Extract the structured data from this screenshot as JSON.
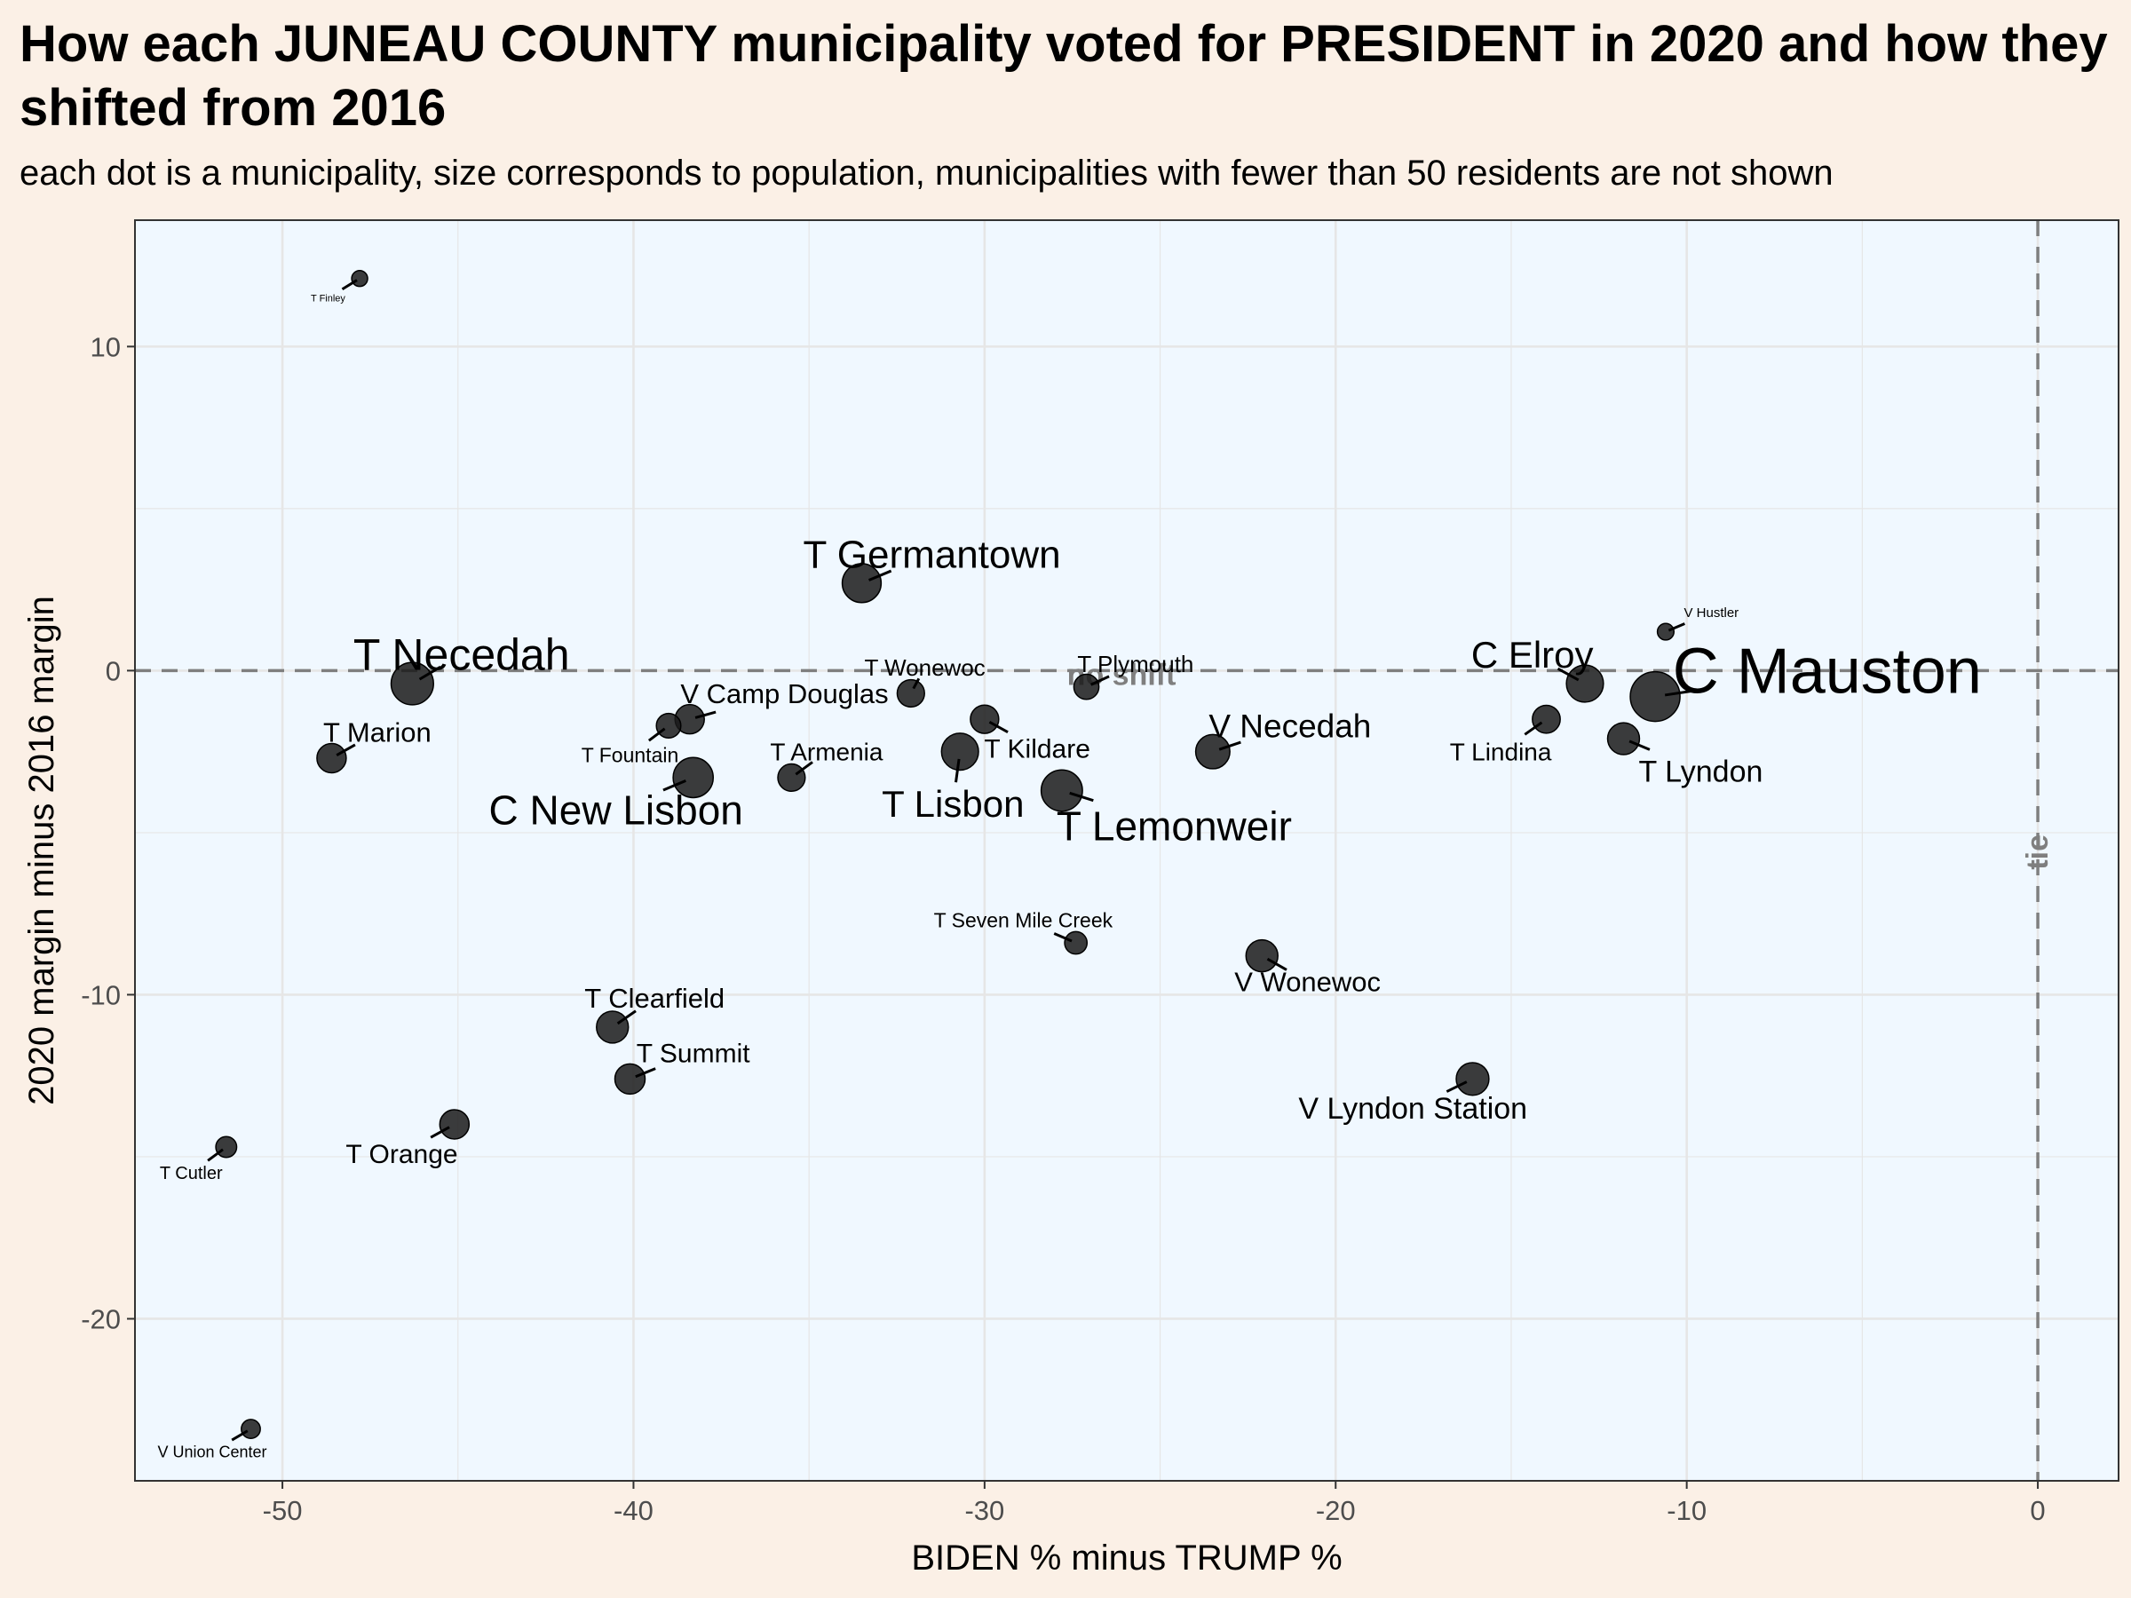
{
  "chart_data": {
    "type": "scatter",
    "title": "How each JUNEAU COUNTY municipality voted for PRESIDENT in 2020 and how they shifted from 2016",
    "subtitle": "each dot is a municipality, size corresponds to population, municipalities with fewer than 50 residents are not shown",
    "xlabel": "BIDEN % minus TRUMP %",
    "ylabel": "2020 margin minus 2016 margin",
    "xlim": [
      -54.2,
      2.3
    ],
    "ylim": [
      -25,
      13.9
    ],
    "x_ticks": [
      -50,
      -40,
      -30,
      -20,
      -10,
      0
    ],
    "y_ticks": [
      -20,
      -10,
      0,
      10
    ],
    "x_tick_labels": [
      "-50",
      "-40",
      "-30",
      "-20",
      "-10",
      "0"
    ],
    "y_tick_labels": [
      "-20",
      "-10",
      "0",
      "10"
    ],
    "grid": true,
    "reference_lines": [
      {
        "axis": "y",
        "value": 0,
        "label": "no shift"
      },
      {
        "axis": "x",
        "value": 0,
        "label": "tie"
      }
    ],
    "colors": {
      "panel": "#f0f8ff",
      "background": "#fbf0e6",
      "point": "#1a1a1a",
      "reference": "#7f7f7f",
      "grid": "#e6e6e6"
    },
    "points": [
      {
        "name": "T Finley",
        "x": -47.8,
        "y": 12.1,
        "pop": 80,
        "lx": -48.7,
        "ly": 11.5,
        "fs": 11
      },
      {
        "name": "V Hustler",
        "x": -10.6,
        "y": 1.2,
        "pop": 100,
        "lx": -9.3,
        "ly": 1.8,
        "fs": 15
      },
      {
        "name": "V Union Center",
        "x": -50.9,
        "y": -23.4,
        "pop": 200,
        "lx": -52.0,
        "ly": -24.1,
        "fs": 18
      },
      {
        "name": "T Cutler",
        "x": -51.6,
        "y": -14.7,
        "pop": 300,
        "lx": -52.6,
        "ly": -15.5,
        "fs": 20
      },
      {
        "name": "T Plymouth",
        "x": -27.1,
        "y": -0.5,
        "pop": 600,
        "lx": -25.7,
        "ly": 0.2,
        "fs": 26
      },
      {
        "name": "T Seven Mile Creek",
        "x": -27.4,
        "y": -8.4,
        "pop": 400,
        "lx": -28.9,
        "ly": -7.7,
        "fs": 23
      },
      {
        "name": "T Fountain",
        "x": -39.0,
        "y": -1.7,
        "pop": 550,
        "lx": -40.1,
        "ly": -2.6,
        "fs": 23
      },
      {
        "name": "T Wonewoc",
        "x": -32.1,
        "y": -0.7,
        "pop": 800,
        "lx": -31.7,
        "ly": 0.1,
        "fs": 26
      },
      {
        "name": "T Armenia",
        "x": -35.5,
        "y": -3.3,
        "pop": 800,
        "lx": -34.5,
        "ly": -2.5,
        "fs": 28
      },
      {
        "name": "T Lindina",
        "x": -14.0,
        "y": -1.5,
        "pop": 850,
        "lx": -15.3,
        "ly": -2.5,
        "fs": 28
      },
      {
        "name": "T Kildare",
        "x": -30.0,
        "y": -1.5,
        "pop": 900,
        "lx": -28.5,
        "ly": -2.4,
        "fs": 30
      },
      {
        "name": "V Camp Douglas",
        "x": -38.4,
        "y": -1.5,
        "pop": 1000,
        "lx": -35.7,
        "ly": -0.7,
        "fs": 31
      },
      {
        "name": "T Marion",
        "x": -48.6,
        "y": -2.7,
        "pop": 1000,
        "lx": -47.3,
        "ly": -1.9,
        "fs": 31
      },
      {
        "name": "T Orange",
        "x": -45.1,
        "y": -14.0,
        "pop": 1000,
        "lx": -46.6,
        "ly": -14.9,
        "fs": 30
      },
      {
        "name": "T Summit",
        "x": -40.1,
        "y": -12.6,
        "pop": 1100,
        "lx": -38.3,
        "ly": -11.8,
        "fs": 30
      },
      {
        "name": "T Lyndon",
        "x": -11.8,
        "y": -2.1,
        "pop": 1300,
        "lx": -9.6,
        "ly": -3.1,
        "fs": 34
      },
      {
        "name": "T Clearfield",
        "x": -40.6,
        "y": -11.0,
        "pop": 1300,
        "lx": -39.4,
        "ly": -10.1,
        "fs": 31
      },
      {
        "name": "V Wonewoc",
        "x": -22.1,
        "y": -8.8,
        "pop": 1300,
        "lx": -20.8,
        "ly": -9.6,
        "fs": 31
      },
      {
        "name": "V Lyndon Station",
        "x": -16.1,
        "y": -12.6,
        "pop": 1400,
        "lx": -17.8,
        "ly": -13.5,
        "fs": 34
      },
      {
        "name": "V Necedah",
        "x": -23.5,
        "y": -2.5,
        "pop": 1600,
        "lx": -21.3,
        "ly": -1.7,
        "fs": 37
      },
      {
        "name": "T Lisbon",
        "x": -30.7,
        "y": -2.5,
        "pop": 2000,
        "lx": -30.9,
        "ly": -4.1,
        "fs": 42
      },
      {
        "name": "C Elroy",
        "x": -12.9,
        "y": -0.4,
        "pop": 2000,
        "lx": -14.4,
        "ly": 0.5,
        "fs": 42
      },
      {
        "name": "T Germantown",
        "x": -33.5,
        "y": 2.7,
        "pop": 2300,
        "lx": -31.5,
        "ly": 3.6,
        "fs": 44
      },
      {
        "name": "T Lemonweir",
        "x": -27.8,
        "y": -3.7,
        "pop": 2700,
        "lx": -24.6,
        "ly": -4.8,
        "fs": 46
      },
      {
        "name": "C New Lisbon",
        "x": -38.3,
        "y": -3.3,
        "pop": 2500,
        "lx": -40.5,
        "ly": -4.3,
        "fs": 46
      },
      {
        "name": "T Necedah",
        "x": -46.3,
        "y": -0.4,
        "pop": 2900,
        "lx": -44.9,
        "ly": 0.5,
        "fs": 50
      },
      {
        "name": "C Mauston",
        "x": -10.9,
        "y": -0.8,
        "pop": 4400,
        "lx": -6.0,
        "ly": 0.0,
        "fs": 72
      }
    ]
  }
}
